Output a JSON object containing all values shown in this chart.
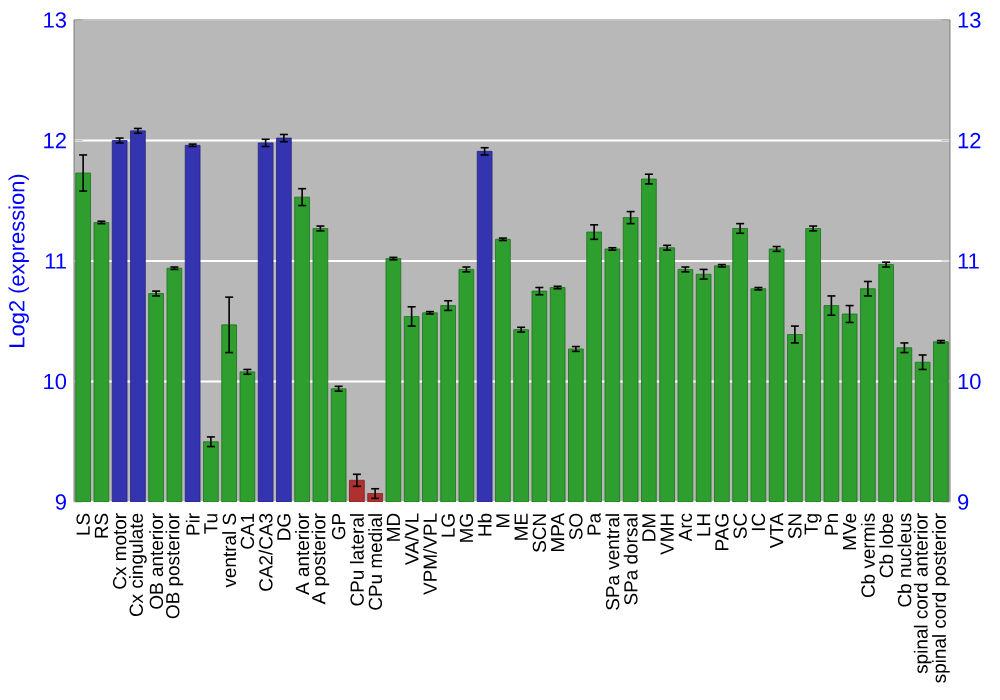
{
  "chart_data": {
    "type": "bar",
    "ylabel": "Log2 (expression)",
    "categories": [
      "LS",
      "RS",
      "Cx motor",
      "Cx cingulate",
      "OB anterior",
      "OB posterior",
      "Pir",
      "Tu",
      "ventral S",
      "CA1",
      "CA2/CA3",
      "DG",
      "A anterior",
      "A posterior",
      "GP",
      "CPu lateral",
      "CPu medial",
      "MD",
      "VA/VL",
      "VPM/VPL",
      "LG",
      "MG",
      "Hb",
      "M",
      "ME",
      "SCN",
      "MPA",
      "SO",
      "Pa",
      "SPa ventral",
      "SPa dorsal",
      "DM",
      "VMH",
      "Arc",
      "LH",
      "PAG",
      "SC",
      "IC",
      "VTA",
      "SN",
      "Tg",
      "Pn",
      "MVe",
      "Cb vermis",
      "Cb lobe",
      "Cb nucleus",
      "spinal cord anterior",
      "spinal cord posterior"
    ],
    "values": [
      11.73,
      11.32,
      12.0,
      12.08,
      10.73,
      10.94,
      11.96,
      9.5,
      10.47,
      10.08,
      11.98,
      12.02,
      11.53,
      11.27,
      9.94,
      9.18,
      9.07,
      11.02,
      10.54,
      10.57,
      10.63,
      10.93,
      11.91,
      11.18,
      10.43,
      10.75,
      10.78,
      10.27,
      11.24,
      11.1,
      11.36,
      11.68,
      11.11,
      10.93,
      10.89,
      10.96,
      11.27,
      10.77,
      11.1,
      10.39,
      11.27,
      10.63,
      10.56,
      10.77,
      10.97,
      10.28,
      10.16,
      10.33
    ],
    "errors": [
      0.15,
      0.01,
      0.02,
      0.02,
      0.02,
      0.01,
      0.01,
      0.04,
      0.23,
      0.02,
      0.03,
      0.03,
      0.07,
      0.02,
      0.02,
      0.05,
      0.04,
      0.01,
      0.08,
      0.01,
      0.04,
      0.02,
      0.03,
      0.01,
      0.02,
      0.03,
      0.01,
      0.02,
      0.06,
      0.01,
      0.05,
      0.04,
      0.02,
      0.02,
      0.04,
      0.01,
      0.04,
      0.01,
      0.02,
      0.07,
      0.02,
      0.08,
      0.07,
      0.06,
      0.02,
      0.04,
      0.06,
      0.01
    ],
    "colors": [
      "#2e9e2e",
      "#2e9e2e",
      "#3434b0",
      "#3434b0",
      "#2e9e2e",
      "#2e9e2e",
      "#3434b0",
      "#2e9e2e",
      "#2e9e2e",
      "#2e9e2e",
      "#3434b0",
      "#3434b0",
      "#2e9e2e",
      "#2e9e2e",
      "#2e9e2e",
      "#b03030",
      "#b03030",
      "#2e9e2e",
      "#2e9e2e",
      "#2e9e2e",
      "#2e9e2e",
      "#2e9e2e",
      "#3434b0",
      "#2e9e2e",
      "#2e9e2e",
      "#2e9e2e",
      "#2e9e2e",
      "#2e9e2e",
      "#2e9e2e",
      "#2e9e2e",
      "#2e9e2e",
      "#2e9e2e",
      "#2e9e2e",
      "#2e9e2e",
      "#2e9e2e",
      "#2e9e2e",
      "#2e9e2e",
      "#2e9e2e",
      "#2e9e2e",
      "#2e9e2e",
      "#2e9e2e",
      "#2e9e2e",
      "#2e9e2e",
      "#2e9e2e",
      "#2e9e2e",
      "#2e9e2e",
      "#2e9e2e",
      "#2e9e2e"
    ],
    "ylim": [
      9,
      13
    ],
    "yticks": [
      9,
      10,
      11,
      12,
      13
    ],
    "y2lim": [
      9,
      13
    ],
    "y2ticks": [
      9,
      10,
      11,
      12,
      13
    ],
    "grid": "y"
  }
}
